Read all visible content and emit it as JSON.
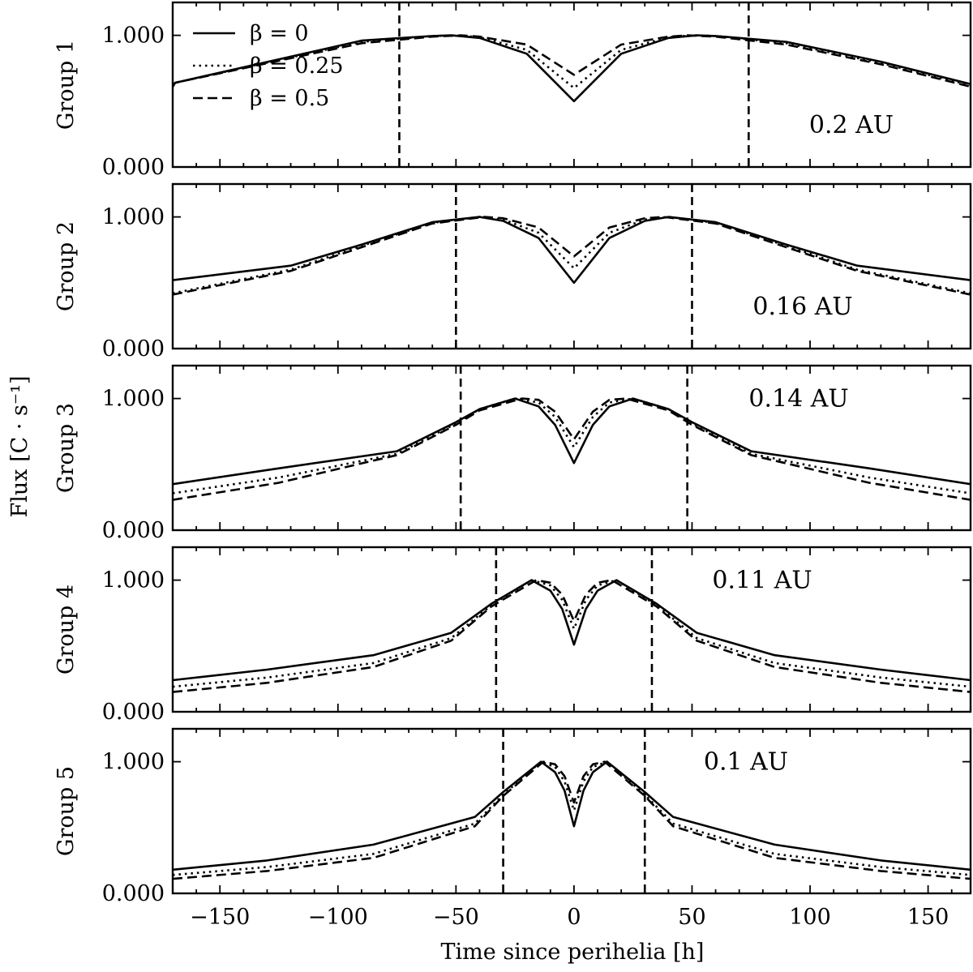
{
  "chart_data": {
    "type": "line",
    "ylabel": "Flux [C · s⁻¹]",
    "xlabel": "Time since perihelia [h]",
    "xlim": [
      -170,
      168
    ],
    "ylim": [
      0,
      1.25
    ],
    "xticks_major": [
      -150,
      -100,
      -50,
      0,
      50,
      100,
      150
    ],
    "xtick_labels": [
      "−150",
      "−100",
      "−50",
      "0",
      "50",
      "100",
      "150"
    ],
    "xticks_minor_step": 10,
    "yticks": [
      0,
      1
    ],
    "ytick_labels": [
      "0.000",
      "1.000"
    ],
    "grid": false,
    "legend": {
      "placement": "top-left",
      "entries": [
        {
          "name": "β = 0",
          "style": "solid"
        },
        {
          "name": "β = 0.25",
          "style": "dotted"
        },
        {
          "name": "β = 0.5",
          "style": "dashed"
        }
      ]
    },
    "series_styles": {
      "beta_0": "solid",
      "beta_0.25": "dotted",
      "beta_0.5": "dashed"
    },
    "panels": [
      {
        "label": "Group 1",
        "annotation": "0.2 AU",
        "vlines": [
          -74,
          74
        ],
        "series": [
          {
            "name": "β = 0",
            "x": [
              -170,
              -169,
              -90,
              -60,
              -52,
              -40,
              -20,
              0,
              20,
              40,
              52,
              60,
              90,
              130,
              168
            ],
            "y": [
              0.61,
              0.64,
              0.96,
              0.995,
              1.0,
              0.98,
              0.86,
              0.5,
              0.86,
              0.98,
              1.0,
              0.995,
              0.95,
              0.8,
              0.63
            ]
          },
          {
            "name": "β = 0.25",
            "x": [
              -170,
              -169,
              -90,
              -60,
              -50,
              -40,
              -20,
              0,
              20,
              40,
              50,
              60,
              90,
              130,
              168
            ],
            "y": [
              0.61,
              0.64,
              0.95,
              0.995,
              1.0,
              0.985,
              0.89,
              0.6,
              0.89,
              0.985,
              1.0,
              0.995,
              0.94,
              0.79,
              0.62
            ]
          },
          {
            "name": "β = 0.5",
            "x": [
              -170,
              -169,
              -90,
              -60,
              -48,
              -40,
              -20,
              0,
              20,
              40,
              48,
              60,
              90,
              130,
              168
            ],
            "y": [
              0.61,
              0.64,
              0.94,
              0.99,
              1.0,
              0.99,
              0.93,
              0.7,
              0.93,
              0.99,
              1.0,
              0.99,
              0.93,
              0.78,
              0.61
            ]
          }
        ]
      },
      {
        "label": "Group 2",
        "annotation": "0.16 AU",
        "vlines": [
          -50,
          50
        ],
        "series": [
          {
            "name": "β = 0",
            "x": [
              -170,
              -120,
              -90,
              -60,
              -40,
              -30,
              -15,
              0,
              15,
              30,
              40,
              60,
              90,
              120,
              168
            ],
            "y": [
              0.52,
              0.63,
              0.79,
              0.96,
              1.0,
              0.97,
              0.84,
              0.5,
              0.84,
              0.97,
              1.0,
              0.96,
              0.79,
              0.63,
              0.52
            ]
          },
          {
            "name": "β = 0.25",
            "x": [
              -170,
              -120,
              -90,
              -60,
              -40,
              -30,
              -15,
              0,
              15,
              30,
              40,
              60,
              90,
              120,
              168
            ],
            "y": [
              0.42,
              0.6,
              0.78,
              0.955,
              1.0,
              0.98,
              0.88,
              0.61,
              0.88,
              0.98,
              1.0,
              0.955,
              0.78,
              0.6,
              0.42
            ]
          },
          {
            "name": "β = 0.5",
            "x": [
              -170,
              -120,
              -90,
              -60,
              -38,
              -30,
              -15,
              0,
              15,
              30,
              38,
              60,
              90,
              120,
              168
            ],
            "y": [
              0.41,
              0.59,
              0.77,
              0.95,
              1.0,
              0.99,
              0.92,
              0.7,
              0.92,
              0.99,
              1.0,
              0.95,
              0.77,
              0.59,
              0.41
            ]
          }
        ]
      },
      {
        "label": "Group 3",
        "annotation": "0.14 AU",
        "vlines": [
          -48,
          48
        ],
        "series": [
          {
            "name": "β = 0",
            "x": [
              -170,
              -125,
              -75,
              -50,
              -40,
              -25,
              -15,
              -8,
              0,
              8,
              15,
              25,
              40,
              50,
              75,
              125,
              168
            ],
            "y": [
              0.35,
              0.47,
              0.6,
              0.82,
              0.92,
              1.0,
              0.94,
              0.8,
              0.51,
              0.8,
              0.94,
              1.0,
              0.92,
              0.82,
              0.6,
              0.47,
              0.35
            ]
          },
          {
            "name": "β = 0.25",
            "x": [
              -170,
              -125,
              -75,
              -50,
              -40,
              -25,
              -15,
              -8,
              0,
              8,
              15,
              25,
              40,
              50,
              75,
              125,
              168
            ],
            "y": [
              0.28,
              0.4,
              0.58,
              0.81,
              0.92,
              1.0,
              0.97,
              0.86,
              0.63,
              0.86,
              0.97,
              1.0,
              0.92,
              0.81,
              0.58,
              0.4,
              0.28
            ]
          },
          {
            "name": "β = 0.5",
            "x": [
              -170,
              -125,
              -75,
              -50,
              -40,
              -22,
              -15,
              -8,
              0,
              8,
              15,
              22,
              40,
              50,
              75,
              125,
              168
            ],
            "y": [
              0.23,
              0.36,
              0.57,
              0.8,
              0.91,
              1.0,
              0.99,
              0.9,
              0.69,
              0.9,
              0.99,
              1.0,
              0.91,
              0.8,
              0.57,
              0.36,
              0.23
            ]
          }
        ]
      },
      {
        "label": "Group 4",
        "annotation": "0.11 AU",
        "vlines": [
          -33,
          33
        ],
        "series": [
          {
            "name": "β = 0",
            "x": [
              -170,
              -130,
              -85,
              -52,
              -35,
              -18,
              -10,
              -5,
              0,
              5,
              10,
              18,
              35,
              52,
              85,
              130,
              168
            ],
            "y": [
              0.24,
              0.32,
              0.43,
              0.6,
              0.82,
              1.0,
              0.92,
              0.78,
              0.51,
              0.78,
              0.92,
              1.0,
              0.82,
              0.6,
              0.43,
              0.32,
              0.24
            ]
          },
          {
            "name": "β = 0.25",
            "x": [
              -170,
              -130,
              -85,
              -52,
              -35,
              -18,
              -10,
              -5,
              0,
              5,
              10,
              18,
              35,
              52,
              85,
              130,
              168
            ],
            "y": [
              0.19,
              0.26,
              0.37,
              0.56,
              0.81,
              1.0,
              0.96,
              0.85,
              0.63,
              0.85,
              0.96,
              1.0,
              0.81,
              0.56,
              0.37,
              0.26,
              0.19
            ]
          },
          {
            "name": "β = 0.5",
            "x": [
              -170,
              -130,
              -85,
              -52,
              -35,
              -16,
              -10,
              -5,
              0,
              5,
              10,
              16,
              35,
              52,
              85,
              130,
              168
            ],
            "y": [
              0.15,
              0.22,
              0.34,
              0.54,
              0.8,
              1.0,
              0.98,
              0.89,
              0.69,
              0.89,
              0.98,
              1.0,
              0.8,
              0.54,
              0.34,
              0.22,
              0.15
            ]
          }
        ]
      },
      {
        "label": "Group 5",
        "annotation": "0.1 AU",
        "vlines": [
          -30,
          30
        ],
        "series": [
          {
            "name": "β = 0",
            "x": [
              -170,
              -130,
              -85,
              -42,
              -30,
              -14,
              -8,
              -4,
              0,
              4,
              8,
              14,
              30,
              42,
              85,
              130,
              168
            ],
            "y": [
              0.18,
              0.25,
              0.37,
              0.58,
              0.77,
              1.0,
              0.92,
              0.78,
              0.51,
              0.78,
              0.92,
              1.0,
              0.77,
              0.58,
              0.37,
              0.25,
              0.18
            ]
          },
          {
            "name": "β = 0.25",
            "x": [
              -170,
              -130,
              -85,
              -42,
              -30,
              -14,
              -8,
              -4,
              0,
              4,
              8,
              14,
              30,
              42,
              85,
              130,
              168
            ],
            "y": [
              0.14,
              0.2,
              0.3,
              0.53,
              0.75,
              1.0,
              0.96,
              0.85,
              0.63,
              0.85,
              0.96,
              1.0,
              0.75,
              0.53,
              0.3,
              0.2,
              0.14
            ]
          },
          {
            "name": "β = 0.5",
            "x": [
              -170,
              -130,
              -85,
              -42,
              -30,
              -13,
              -8,
              -4,
              0,
              4,
              8,
              13,
              30,
              42,
              85,
              130,
              168
            ],
            "y": [
              0.11,
              0.17,
              0.27,
              0.51,
              0.74,
              1.0,
              0.98,
              0.89,
              0.69,
              0.89,
              0.98,
              1.0,
              0.74,
              0.51,
              0.27,
              0.17,
              0.11
            ]
          }
        ]
      }
    ]
  }
}
